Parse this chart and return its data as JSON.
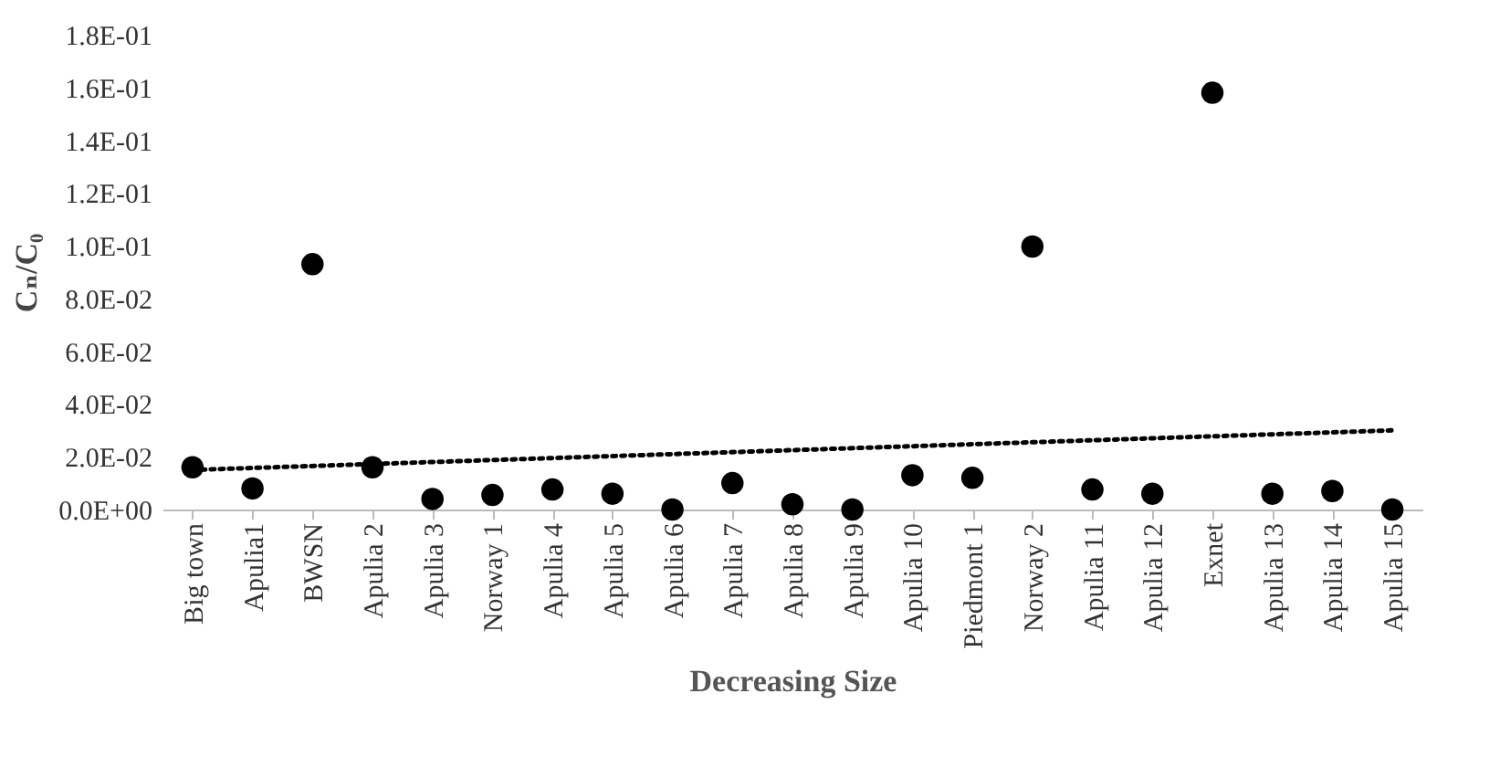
{
  "chart_data": {
    "type": "scatter",
    "xlabel": "Decreasing Size",
    "ylabel": "Cₙ/C₀",
    "categories": [
      "Big town",
      "Apulia1",
      "BWSN",
      "Apulia 2",
      "Apulia 3",
      "Norway 1",
      "Apulia 4",
      "Apulia 5",
      "Apulia 6",
      "Apulia 7",
      "Apulia 8",
      "Apulia 9",
      "Apulia 10",
      "Piedmont 1",
      "Norway 2",
      "Apulia 11",
      "Apulia 12",
      "Exnet",
      "Apulia 13",
      "Apulia 14",
      "Apulia 15"
    ],
    "series": [
      {
        "color": "#000000",
        "marker": "circle",
        "values": [
          0.016,
          0.008,
          0.093,
          0.016,
          0.004,
          0.0055,
          0.0076,
          0.006,
          0,
          0.01,
          0.002,
          0,
          0.013,
          0.012,
          0.0997,
          0.0076,
          0.006,
          0.158,
          0.006,
          0.007,
          0
        ]
      },
      {
        "type": "line",
        "color": "#000000",
        "line_style": "dotted",
        "marker": "none",
        "x": [
          "Big town",
          "Apulia 15"
        ],
        "values": [
          0.015,
          0.03
        ]
      }
    ],
    "ylim": [
      0,
      0.18
    ],
    "yticks": [
      {
        "value": 0,
        "label": "0.0E+00"
      },
      {
        "value": 0.02,
        "label": "2.0E-02"
      },
      {
        "value": 0.04,
        "label": "4.0E-02"
      },
      {
        "value": 0.06,
        "label": "6.0E-02"
      },
      {
        "value": 0.08,
        "label": "8.0E-02"
      },
      {
        "value": 0.1,
        "label": "1.0E-01"
      },
      {
        "value": 0.12,
        "label": "1.2E-01"
      },
      {
        "value": 0.14,
        "label": "1.4E-01"
      },
      {
        "value": 0.16,
        "label": "1.6E-01"
      },
      {
        "value": 0.18,
        "label": "1.8E-01"
      }
    ],
    "grid": false
  }
}
